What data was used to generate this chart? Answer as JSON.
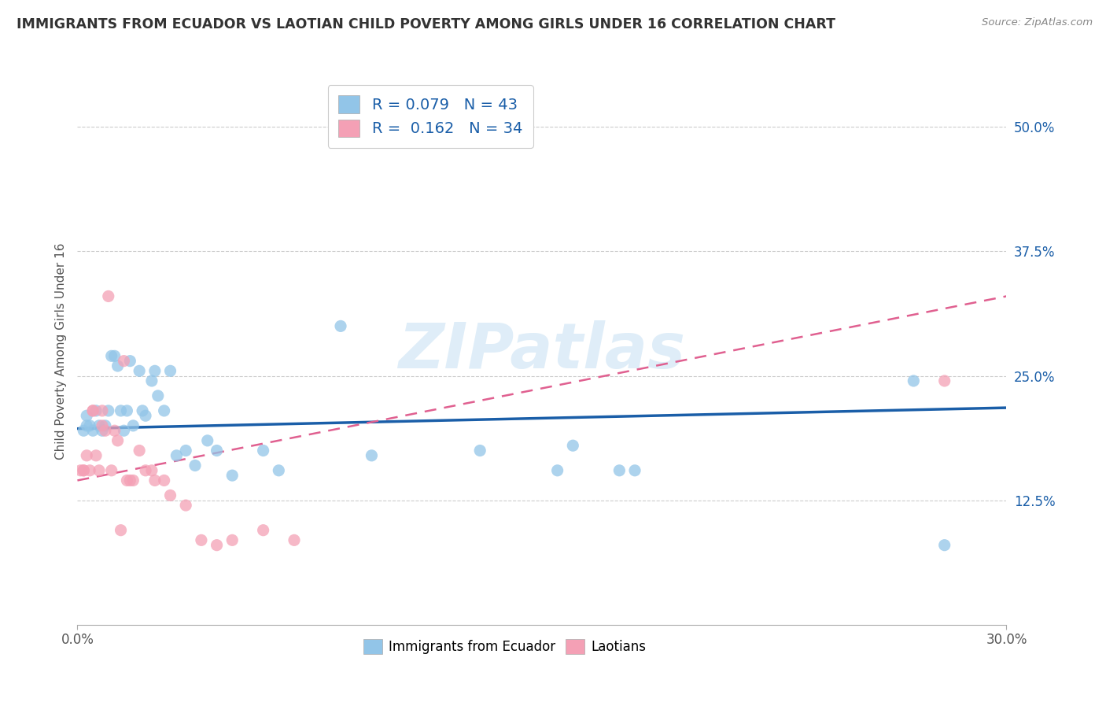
{
  "title": "IMMIGRANTS FROM ECUADOR VS LAOTIAN CHILD POVERTY AMONG GIRLS UNDER 16 CORRELATION CHART",
  "source": "Source: ZipAtlas.com",
  "ylabel": "Child Poverty Among Girls Under 16",
  "xlim": [
    0.0,
    0.3
  ],
  "ylim": [
    0.0,
    0.55
  ],
  "xtick_positions": [
    0.0,
    0.3
  ],
  "xtick_labels": [
    "0.0%",
    "30.0%"
  ],
  "ytick_positions": [
    0.125,
    0.25,
    0.375,
    0.5
  ],
  "ytick_labels": [
    "12.5%",
    "25.0%",
    "37.5%",
    "50.0%"
  ],
  "r_ecuador": 0.079,
  "n_ecuador": 43,
  "r_laotian": 0.162,
  "n_laotian": 34,
  "color_ecuador": "#92C5E8",
  "color_laotian": "#F4A0B5",
  "line_color_ecuador": "#1A5EA8",
  "line_color_laotian": "#E06090",
  "watermark": "ZIPatlas",
  "ecuador_x": [
    0.002,
    0.003,
    0.003,
    0.004,
    0.005,
    0.006,
    0.007,
    0.008,
    0.009,
    0.01,
    0.011,
    0.012,
    0.013,
    0.014,
    0.015,
    0.016,
    0.017,
    0.018,
    0.02,
    0.021,
    0.022,
    0.024,
    0.025,
    0.026,
    0.028,
    0.03,
    0.032,
    0.035,
    0.038,
    0.042,
    0.045,
    0.05,
    0.06,
    0.065,
    0.085,
    0.095,
    0.13,
    0.155,
    0.16,
    0.175,
    0.18,
    0.27,
    0.28
  ],
  "ecuador_y": [
    0.195,
    0.2,
    0.21,
    0.2,
    0.195,
    0.215,
    0.2,
    0.195,
    0.2,
    0.215,
    0.27,
    0.27,
    0.26,
    0.215,
    0.195,
    0.215,
    0.265,
    0.2,
    0.255,
    0.215,
    0.21,
    0.245,
    0.255,
    0.23,
    0.215,
    0.255,
    0.17,
    0.175,
    0.16,
    0.185,
    0.175,
    0.15,
    0.175,
    0.155,
    0.3,
    0.17,
    0.175,
    0.155,
    0.18,
    0.155,
    0.155,
    0.245,
    0.08
  ],
  "laotian_x": [
    0.001,
    0.002,
    0.002,
    0.003,
    0.004,
    0.005,
    0.005,
    0.006,
    0.007,
    0.008,
    0.008,
    0.009,
    0.01,
    0.011,
    0.012,
    0.013,
    0.014,
    0.015,
    0.016,
    0.017,
    0.018,
    0.02,
    0.022,
    0.024,
    0.025,
    0.028,
    0.03,
    0.035,
    0.04,
    0.045,
    0.05,
    0.06,
    0.07,
    0.28
  ],
  "laotian_y": [
    0.155,
    0.155,
    0.155,
    0.17,
    0.155,
    0.215,
    0.215,
    0.17,
    0.155,
    0.2,
    0.215,
    0.195,
    0.33,
    0.155,
    0.195,
    0.185,
    0.095,
    0.265,
    0.145,
    0.145,
    0.145,
    0.175,
    0.155,
    0.155,
    0.145,
    0.145,
    0.13,
    0.12,
    0.085,
    0.08,
    0.085,
    0.095,
    0.085,
    0.245
  ],
  "ecuador_trend_x": [
    0.0,
    0.3
  ],
  "ecuador_trend_y": [
    0.197,
    0.218
  ],
  "laotian_trend_x": [
    0.0,
    0.3
  ],
  "laotian_trend_y": [
    0.145,
    0.33
  ]
}
